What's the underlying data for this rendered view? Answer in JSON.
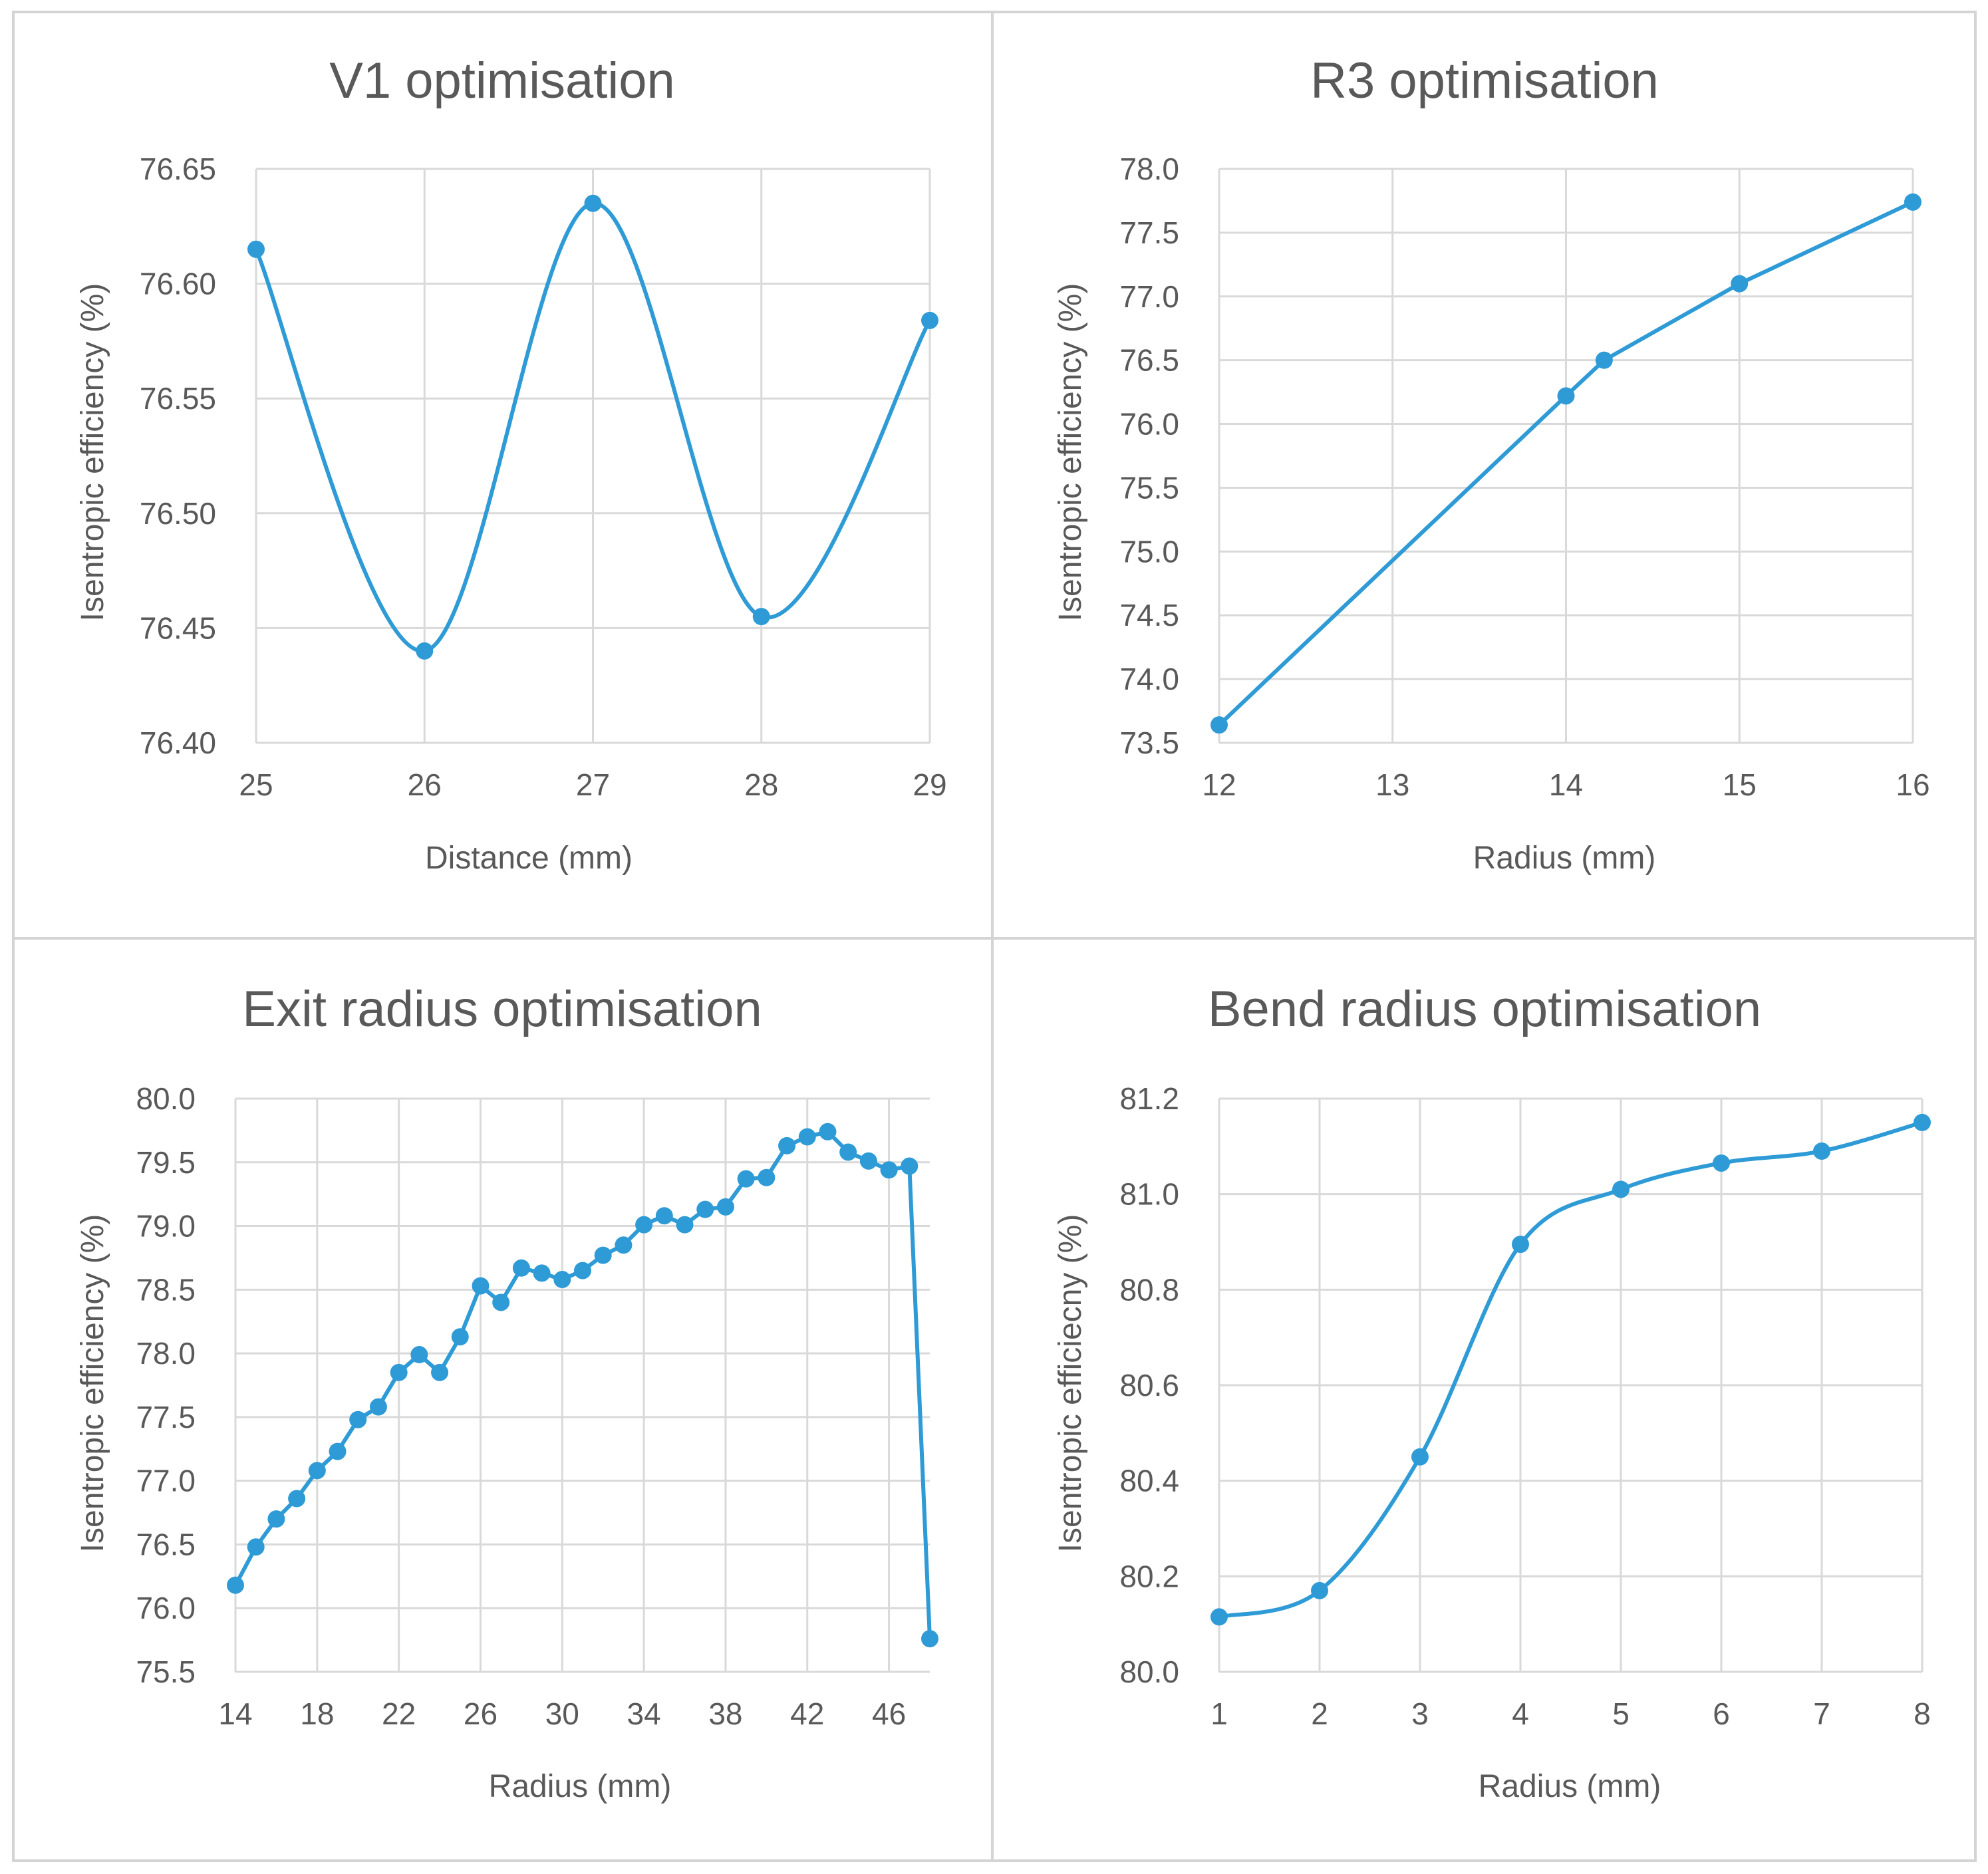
{
  "colors": {
    "series": "#2e9bd6",
    "grid": "#d9d9d9",
    "text": "#595959",
    "border": "#d4d4d4"
  },
  "chart_data": [
    {
      "type": "line",
      "smooth": true,
      "title": "V1 optimisation",
      "xlabel": "Distance (mm)",
      "ylabel": "Isentropic efficiency (%)",
      "xlim": [
        25,
        29
      ],
      "ylim": [
        76.4,
        76.65
      ],
      "xticks": [
        25,
        26,
        27,
        28,
        29
      ],
      "yticks": [
        76.4,
        76.45,
        76.5,
        76.55,
        76.6,
        76.65
      ],
      "xtick_labels": [
        "25",
        "26",
        "27",
        "28",
        "29"
      ],
      "ytick_labels": [
        "76.40",
        "76.45",
        "76.50",
        "76.55",
        "76.60",
        "76.65"
      ],
      "x": [
        25,
        26,
        27,
        28,
        29
      ],
      "y": [
        76.615,
        76.44,
        76.635,
        76.455,
        76.584
      ]
    },
    {
      "type": "line",
      "smooth": false,
      "title": "R3 optimisation",
      "xlabel": "Radius (mm)",
      "ylabel": "Isentropic efficiency (%)",
      "xlim": [
        12,
        16
      ],
      "ylim": [
        73.5,
        78.0
      ],
      "xticks": [
        12,
        13,
        14,
        15,
        16
      ],
      "yticks": [
        73.5,
        74.0,
        74.5,
        75.0,
        75.5,
        76.0,
        76.5,
        77.0,
        77.5,
        78.0
      ],
      "xtick_labels": [
        "12",
        "13",
        "14",
        "15",
        "16"
      ],
      "ytick_labels": [
        "73.5",
        "74.0",
        "74.5",
        "75.0",
        "75.5",
        "76.0",
        "76.5",
        "77.0",
        "77.5",
        "78.0"
      ],
      "x": [
        12,
        14,
        14.22,
        15,
        16
      ],
      "y": [
        73.64,
        76.22,
        76.5,
        77.1,
        77.74
      ]
    },
    {
      "type": "line",
      "smooth": false,
      "title": "Exit radius optimisation",
      "xlabel": "Radius (mm)",
      "ylabel": "Isentropic efficiency (%)",
      "xlim": [
        14,
        48
      ],
      "ylim": [
        75.5,
        80.0
      ],
      "xticks": [
        14,
        18,
        22,
        26,
        30,
        34,
        38,
        42,
        46
      ],
      "yticks": [
        75.5,
        76.0,
        76.5,
        77.0,
        77.5,
        78.0,
        78.5,
        79.0,
        79.5,
        80.0
      ],
      "xtick_labels": [
        "14",
        "18",
        "22",
        "26",
        "30",
        "34",
        "38",
        "42",
        "46"
      ],
      "ytick_labels": [
        "75.5",
        "76.0",
        "76.5",
        "77.0",
        "77.5",
        "78.0",
        "78.5",
        "79.0",
        "79.5",
        "80.0"
      ],
      "x": [
        14,
        15,
        16,
        17,
        18,
        19,
        20,
        21,
        22,
        23,
        24,
        25,
        26,
        27,
        28,
        29,
        30,
        31,
        32,
        33,
        34,
        35,
        36,
        37,
        38,
        39,
        40,
        41,
        42,
        43,
        44,
        45,
        46,
        47,
        48
      ],
      "y": [
        76.18,
        76.48,
        76.7,
        76.86,
        77.08,
        77.23,
        77.48,
        77.58,
        77.85,
        77.99,
        77.85,
        78.13,
        78.53,
        78.4,
        78.67,
        78.63,
        78.58,
        78.65,
        78.77,
        78.85,
        79.01,
        79.08,
        79.01,
        79.13,
        79.15,
        79.37,
        79.38,
        79.63,
        79.7,
        79.74,
        79.58,
        79.51,
        79.44,
        79.47,
        75.76
      ]
    },
    {
      "type": "line",
      "smooth": true,
      "title": "Bend radius optimisation",
      "xlabel": "Radius (mm)",
      "ylabel": "Isentropic efficiecny (%)",
      "xlim": [
        1,
        8
      ],
      "ylim": [
        80.0,
        81.2
      ],
      "xticks": [
        1,
        2,
        3,
        4,
        5,
        6,
        7,
        8
      ],
      "yticks": [
        80.0,
        80.2,
        80.4,
        80.6,
        80.8,
        81.0,
        81.2
      ],
      "xtick_labels": [
        "1",
        "2",
        "3",
        "4",
        "5",
        "6",
        "7",
        "8"
      ],
      "ytick_labels": [
        "80.0",
        "80.2",
        "80.4",
        "80.6",
        "80.8",
        "81.0",
        "81.2"
      ],
      "x": [
        1,
        2,
        3,
        4,
        5,
        6,
        7,
        8
      ],
      "y": [
        80.115,
        80.17,
        80.45,
        80.895,
        81.01,
        81.065,
        81.09,
        81.15
      ]
    }
  ]
}
